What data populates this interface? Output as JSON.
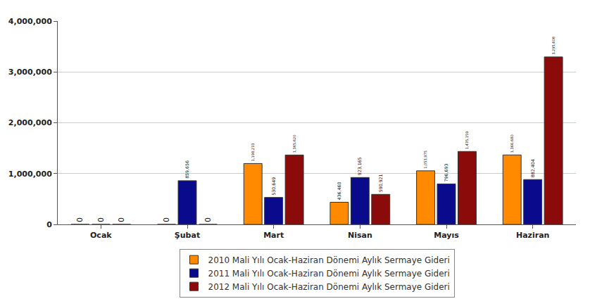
{
  "chart_data": {
    "type": "bar",
    "categories": [
      "Ocak",
      "Şubat",
      "Mart",
      "Nisan",
      "Mayıs",
      "Haziran"
    ],
    "series": [
      {
        "name": "2010 Mali Yılı Ocak-Haziran Dönemi Aylık Sermaye Gideri",
        "color": "#ff8a00",
        "values": [
          0,
          0,
          1198233,
          436460,
          1053975,
          1366680
        ],
        "value_labels": [
          "0",
          "0",
          "1,198,233",
          "436,460",
          "1,053,975",
          "1,366,680"
        ]
      },
      {
        "name": "2011 Mali Yılı Ocak-Haziran Dönemi Aylık Sermaye Gideri",
        "color": "#0a0a8c",
        "values": [
          0,
          859656,
          530649,
          923165,
          796693,
          882404
        ],
        "value_labels": [
          "0",
          "859,656",
          "530,649",
          "923,165",
          "796,693",
          "882,404"
        ]
      },
      {
        "name": "2012 Mali Yılı Ocak-Haziran Dönemi Aylık Sermaye Gideri",
        "color": "#8b0a0a",
        "values": [
          0,
          0,
          1365620,
          590921,
          1435159,
          3295608
        ],
        "value_labels": [
          "0",
          "0",
          "1,365,620",
          "590,921",
          "1,435,159",
          "3,295,608"
        ]
      }
    ],
    "ylim": [
      0,
      4000000
    ],
    "yticks": [
      0,
      {
        "value": 1000000,
        "label": "1,000,000"
      },
      {
        "value": 2000000,
        "label": "2,000,000"
      },
      {
        "value": 3000000,
        "label": "3,000,000"
      },
      {
        "value": 4000000,
        "label": "4,000,000"
      }
    ],
    "grid": true,
    "legend": "bottom",
    "data_labels": true
  }
}
